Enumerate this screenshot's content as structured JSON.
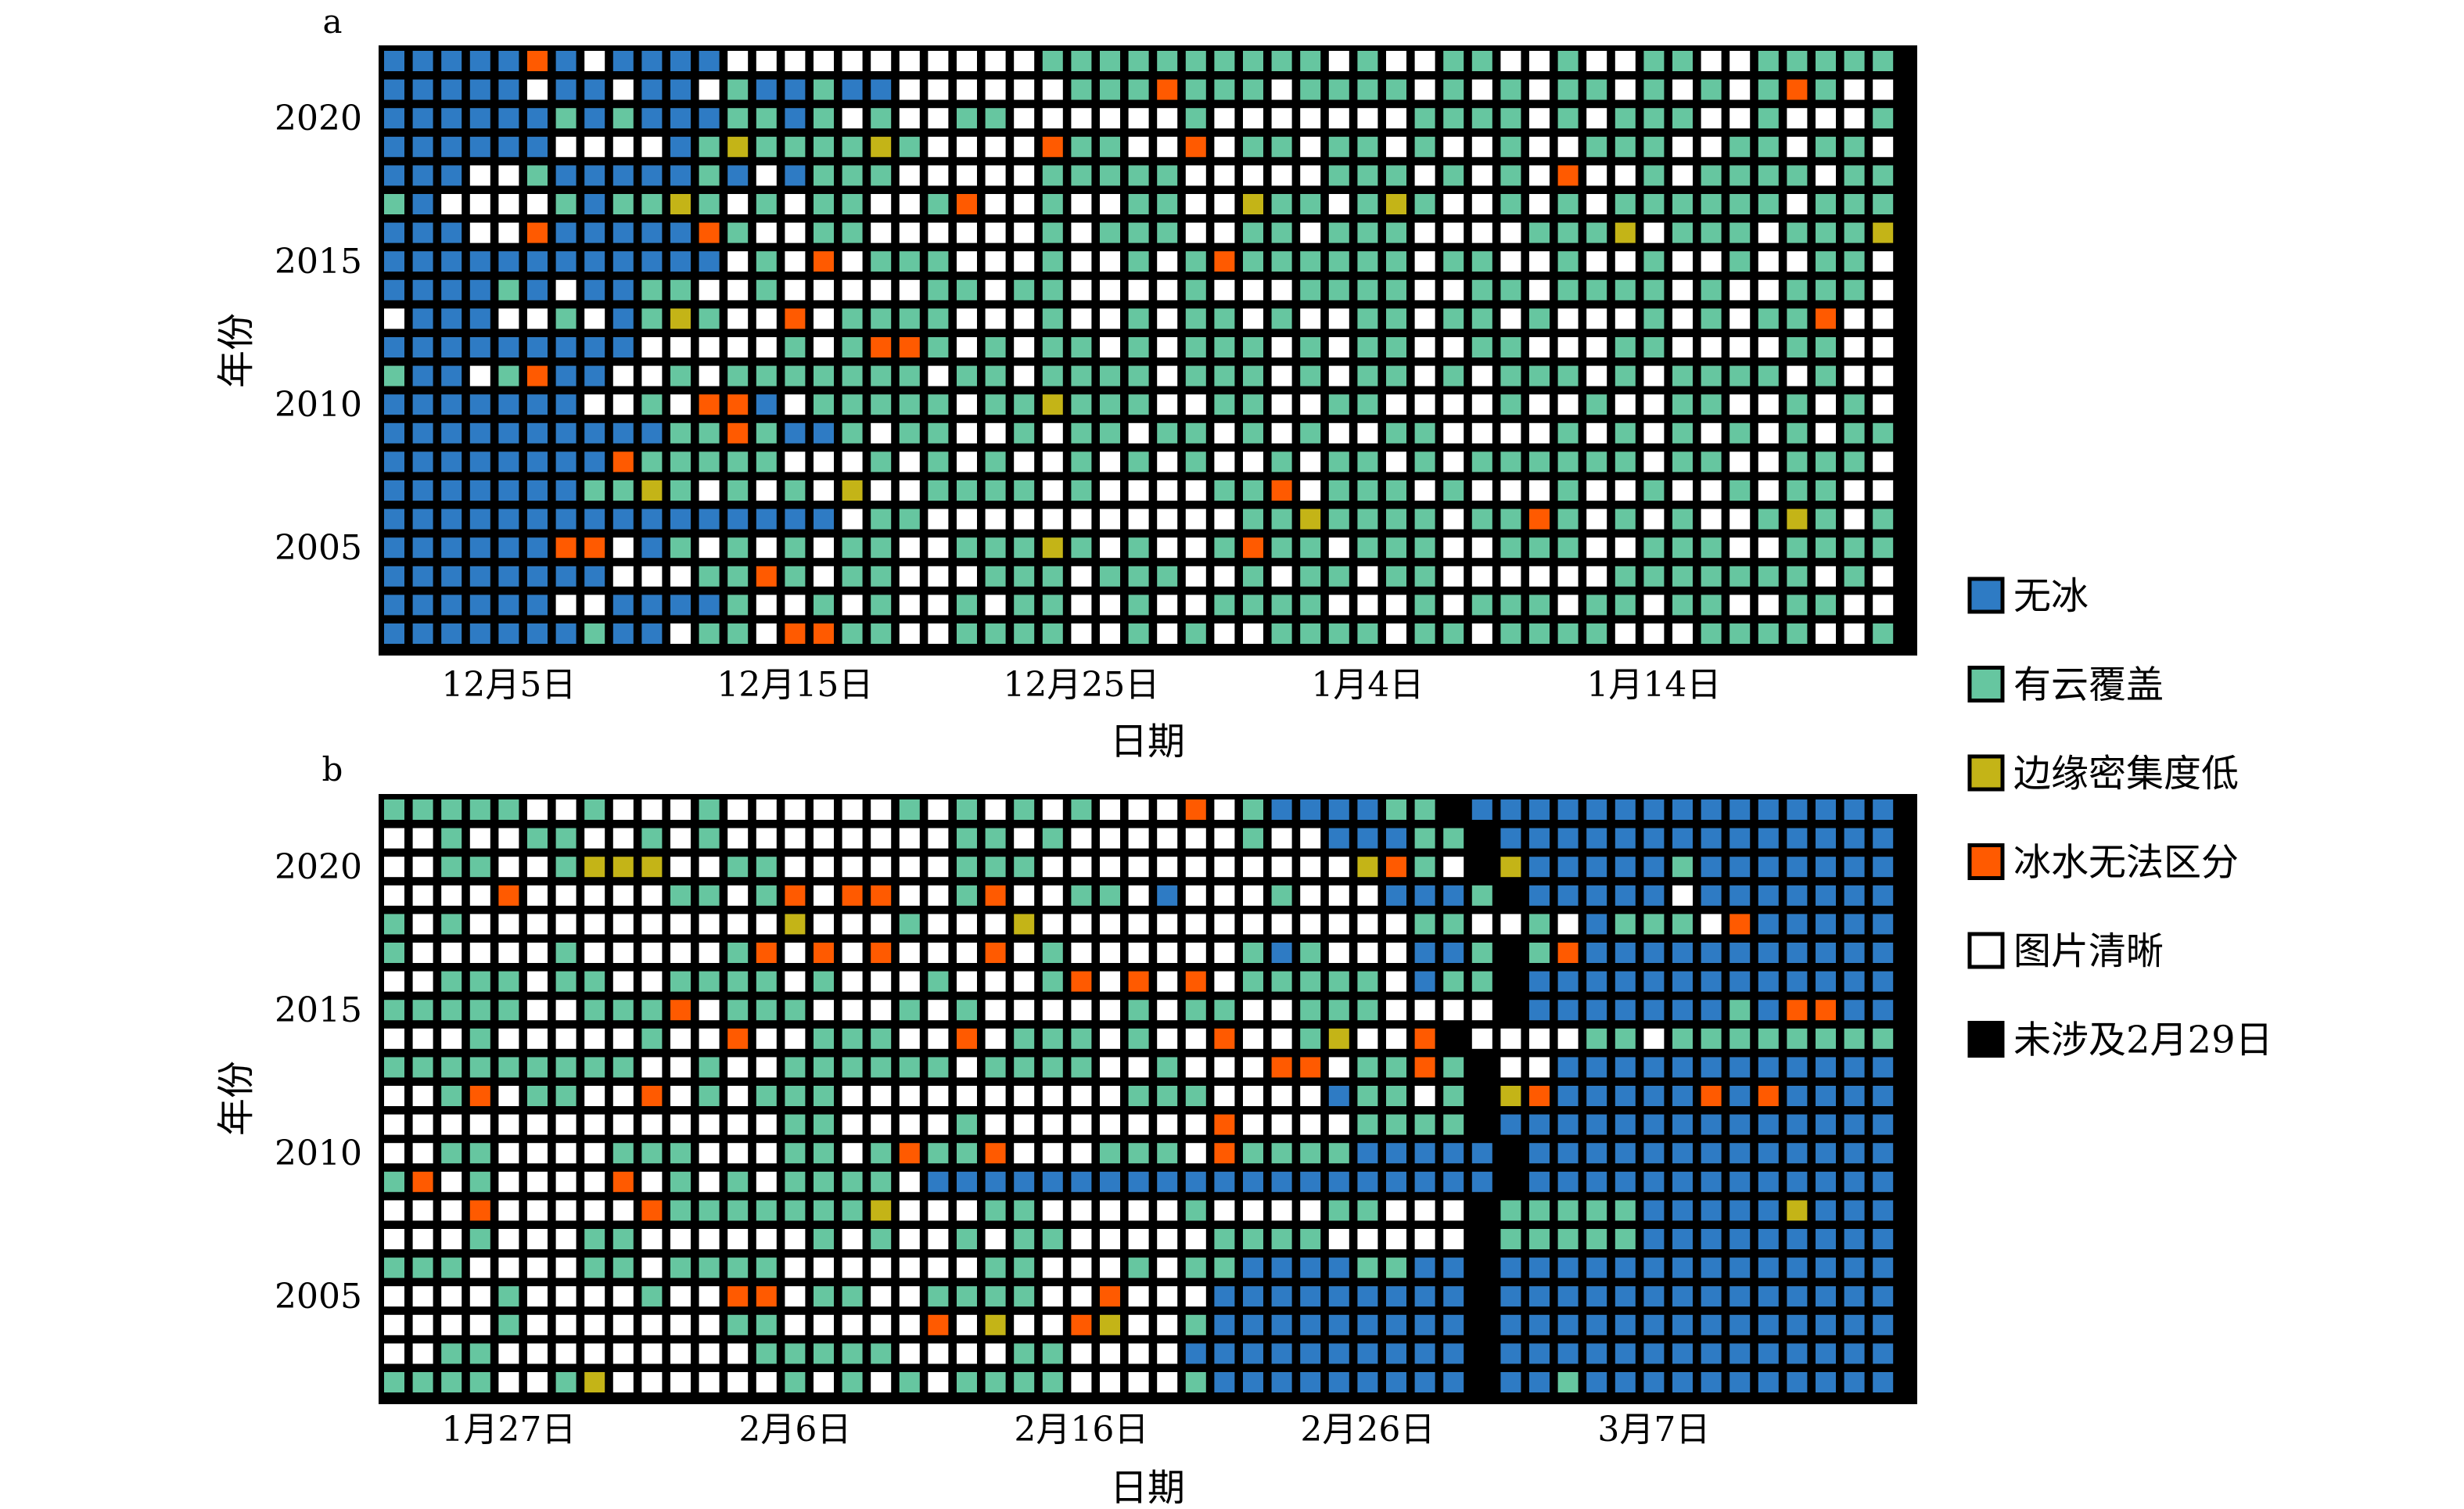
{
  "colors": {
    "no_ice": "#2e7bc4",
    "cloud": "#66c6a0",
    "low_density": "#c4b417",
    "indistinct": "#ff5a00",
    "clear": "#ffffff",
    "not_applicable": "#000000",
    "frame": "#000000"
  },
  "legend": [
    {
      "key": "B",
      "label": "无冰",
      "color": "#2e7bc4"
    },
    {
      "key": "G",
      "label": "有云覆盖",
      "color": "#66c6a0"
    },
    {
      "key": "Y",
      "label": "边缘密集度低",
      "color": "#c4b417"
    },
    {
      "key": "O",
      "label": "冰水无法区分",
      "color": "#ff5a00"
    },
    {
      "key": "W",
      "label": "图片清晰",
      "color": "#ffffff"
    },
    {
      "key": "K",
      "label": "未涉及2月29日",
      "color": "#000000"
    }
  ],
  "chart_data": [
    {
      "type": "heatmap",
      "panel_label": "a",
      "xlabel": "日期",
      "ylabel": "年份",
      "x_ticks": [
        {
          "label": "12月5日",
          "day_index": 5
        },
        {
          "label": "12月15日",
          "day_index": 15
        },
        {
          "label": "12月25日",
          "day_index": 25
        },
        {
          "label": "1月4日",
          "day_index": 35
        },
        {
          "label": "1月14日",
          "day_index": 45
        }
      ],
      "y_ticks": [
        {
          "label": "2020",
          "year": 2020
        },
        {
          "label": "2015",
          "year": 2015
        },
        {
          "label": "2010",
          "year": 2010
        },
        {
          "label": "2005",
          "year": 2005
        }
      ],
      "years": [
        2022,
        2021,
        2020,
        2019,
        2018,
        2017,
        2016,
        2015,
        2014,
        2013,
        2012,
        2011,
        2010,
        2009,
        2008,
        2007,
        2006,
        2005,
        2004,
        2003,
        2002
      ],
      "n_days": 53,
      "legend_codes": {
        "B": "无冰",
        "G": "有云覆盖",
        "Y": "边缘密集度低",
        "O": "冰水无法区分",
        "W": "图片清晰",
        "K": "未涉及2月29日"
      },
      "rows": [
        "BBBBBOBWBBBBWWWWWWWWWWWGGGGGGGGGGWGWWGGWWGWWGGWWGGGGG",
        "BBBBBWBBWBBWGBBGBBWWWWWWGGGOGGGWGGGGWGWGWGGWGWGWGOGWW",
        "BBBBBBGBGBBBGGBGWGWWGGWWWWWWGWWWWWWWGGGGWGWGGGWWGWWWG",
        "BBBBBBWWWWBGYGGGGYGWWWWOGGWWOWGGWGGWGWWGWWGGGWWGGWGGW",
        "BBBWWGBBBBBGBWBGGGWWWWWGGGGGWWWWWGGGWGWGWOWWGWGGGGWGG",
        "GBWWWWGBGGYGWGWGGWWGOWWGWWGGWWYGGWGYGWWGWGWGGGGGGWGGG",
        "BBBWWOBBBBBOGWWGGWWWWWWGWGGGWWGGWGGGWWWWGGGYWGGGWGGGY",
        "BBBBBBBBBBBBWGWOWGGGWWWGWWGWGOGGGGGGWGGWWGWWGWWGWWGGW",
        "BBBBGBWBBGGWWGWWWWWGGWGGWWWWGWWWGGGGWWGGWGGGGWGWWGGGW",
        "WBBBWWGWBGYGWWOWGGGGWWWGWWGWGGWGWWGGWGGWGWWWGWGWGGOWW",
        "BBBBBBBBBWWWWWGWGOOGWGWGGWGWGGGWGWGGWWGGWWWGGWWWWGGWW",
        "GBBWGOBBWWGWGGGGGGGWGGWGGGGWGGGWGWGGWGWGGGWGWGGGGWGWW",
        "BBBBBBBWWGWOOBWGGGGGWGGYGGGWWGGWWGGWWWWGWWGWWGGWWGWGW",
        "BBBBBBBBBBGGOGBBGWGGWWGWGGWGGWGWGWWGGWWWWGWGWGWGWGWGG",
        "BBBBBBBBOGGGGGWWWGWGWGWWGWGWGWWGWGGWGWGGGGGGWGGWWGGGW",
        "BBBBBBBGGYGWGWGWYWWGGGGWGWWWWGGOWGGGWGWWWGWWGWWGWGGWW",
        "BBBBBBBBBBBBBBBBWGGWWWWWWWWWWWGGYGGGGWGGOGWGWGWWGYGWG",
        "BBBBBBOOWBGWGWGWGGWWGGGYGWGWWGOGGWGGGWWGGGWWGGGWWGGGG",
        "BBBBBBBBWWWGGOGWGGWWWGGGWGGGWWGWGGWGGWWWWWWGGGGGGGWGW",
        "BBBBBBWWBBBBGWWGWGWWGWGGWWGWWGGGGWWWGWGGGWGGWGGWWGGWW",
        "BBBBBBBGBBWGGWOOGGWWGGGGWWGWGWWGGGGWGGWGGGGWWWGGGGWWG"
      ]
    },
    {
      "type": "heatmap",
      "panel_label": "b",
      "xlabel": "日期",
      "ylabel": "年份",
      "x_ticks": [
        {
          "label": "1月27日",
          "day_index": 5
        },
        {
          "label": "2月6日",
          "day_index": 15
        },
        {
          "label": "2月16日",
          "day_index": 25
        },
        {
          "label": "2月26日",
          "day_index": 35
        },
        {
          "label": "3月7日",
          "day_index": 45
        }
      ],
      "y_ticks": [
        {
          "label": "2020",
          "year": 2020
        },
        {
          "label": "2015",
          "year": 2015
        },
        {
          "label": "2010",
          "year": 2010
        },
        {
          "label": "2005",
          "year": 2005
        }
      ],
      "years": [
        2022,
        2021,
        2020,
        2019,
        2018,
        2017,
        2016,
        2015,
        2014,
        2013,
        2012,
        2011,
        2010,
        2009,
        2008,
        2007,
        2006,
        2005,
        2004,
        2003,
        2002
      ],
      "n_days": 53,
      "legend_codes": {
        "B": "无冰",
        "G": "有云覆盖",
        "Y": "边缘密集度低",
        "O": "冰水无法区分",
        "W": "图片清晰",
        "K": "未涉及2月29日"
      },
      "rows": [
        "GGGGGWWGWWWGWWWWWWGWGWGWGWWWOWGBBBBGGKBBBBBBBBBBBBBBB",
        "WWGWWGGWWGWGWWWWWWWWGGWGWWWWWWGWWBBBGGKBBBBBBBBBBBBBB",
        "WWGGWWGYYYWWGGWWWWWWGGGWWWWWWWWWWWYOGWKYBBBBBGBBBBBBB",
        "WWWWOWWWWWGGWGOWOOWWGOWWGGWBWWWGWWWBBBGKBBBBBWBBBBBBB",
        "GWGWWWWWWWWWWWYWWWGWWWYWWWWWWWWWWWWWGGWWGWBGGGWOBBBBB",
        "GWWWWWGWWWWWGOWOWOWWWOWGWWWWWWGBGWWWBBGKGOBBBBBBBBBBB",
        "WWGGGWGGWWGGGGWGWWWGWWWGOWOWOWGGGGGWBGGKBBBBBBBBBBBBB",
        "GGGGGWWGGGOWGGGWWWGWGWWWWWGWGGWWGGGWWWWKBBBBBBBGBOOBB",
        "WWWGWWWWWGWWOWWGGGWWOWGGGWGWWOWWGYWWOKWWWWGGWGGGGGGGG",
        "GGGGGGGGGWWGWWGGGGGGWGGGGWWGWWWOOWGGOGKWWBBBBBBBBBBBB",
        "WWGOWGGWWOWGWGGGWWWWWWWWWWGGGWWWWBGGWGKYOBBBBBOBOBBBB",
        "WWWWWWWWWWWWWWGGWWWWGWWWWWWWWOWWWWGGGGKBBBBBBBBBBBBBB",
        "WWGGWWWWGGGWWWGGWGOGGOWWWGGGWOGGGGBBBBBKBBBBBBBBBBBBB",
        "GOWGWWWWOWGWGWGGGGWBBBBBBBBBBBBBBBBBBBBKBBBBBBBBBBBBB",
        "WWWOWWWWWOGGGGGGGYWWWGGWWWWWGWWWWGGWWWKGGGGGBBBBBYBBB",
        "WWWGWWWGGWWWWWWGWGWWGWGGWWWWWGGGGWWWWWKGGGGGBBBBBBBBB",
        "GGGWWWWGGWGGGGWWWWWWWGGWWWGWGGBBBBGGBBKBBBBBBBBBBBBBB",
        "WWWWGWWWWGWWOOWGGWWGGGGWWOWWWBBBBBBBBBKBBBBBBBBBBBBBB",
        "WWWWGWWWWWWWGGWWWWWOWYWWOYWWGBBBBBBBBBKBBBBBBBBBBBBBB",
        "WWGGWWWWWWWWWGGGGGWWWWGGWWWWBBBBBBBBBBKBBBBBBBBBBBBBB",
        "GGGGWWGYWWWWWWGWGWGWGGGGWWWWGBBBBBBBBBKBBGBBBBBBBBBBB"
      ]
    }
  ]
}
